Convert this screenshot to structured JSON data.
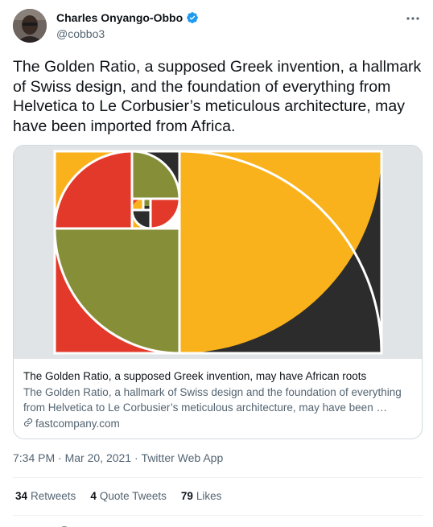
{
  "author": {
    "display_name": "Charles Onyango-Obbo",
    "handle": "@cobbo3",
    "verified": true
  },
  "tweet_text": "The Golden Ratio, a supposed Greek invention, a hallmark of Swiss design, and the foundation of everything from Helvetica to Le Corbusier’s meticulous architecture, may have been imported from Africa.",
  "card": {
    "title": "The Golden Ratio, a supposed Greek invention, may have African roots",
    "description": "The Golden Ratio, a hallmark of Swiss design and the foundation of everything from Helvetica to Le Corbusier’s meticulous architecture, may have been …",
    "domain": "fastcompany.com",
    "image_colors": {
      "background": "#e1e4e6",
      "yellow": "#f9b21c",
      "red": "#e2392a",
      "olive": "#868f38",
      "black": "#2c2c2c"
    }
  },
  "meta": {
    "time": "7:34 PM",
    "separator": " · ",
    "date": "Mar 20, 2021",
    "source": "Twitter Web App"
  },
  "stats": {
    "retweets_count": "34",
    "retweets_label": "Retweets",
    "quote_count": "4",
    "quote_label": "Quote Tweets",
    "likes_count": "79",
    "likes_label": "Likes"
  },
  "colors": {
    "verified_badge": "#1d9bf0",
    "secondary_text": "#536471"
  }
}
